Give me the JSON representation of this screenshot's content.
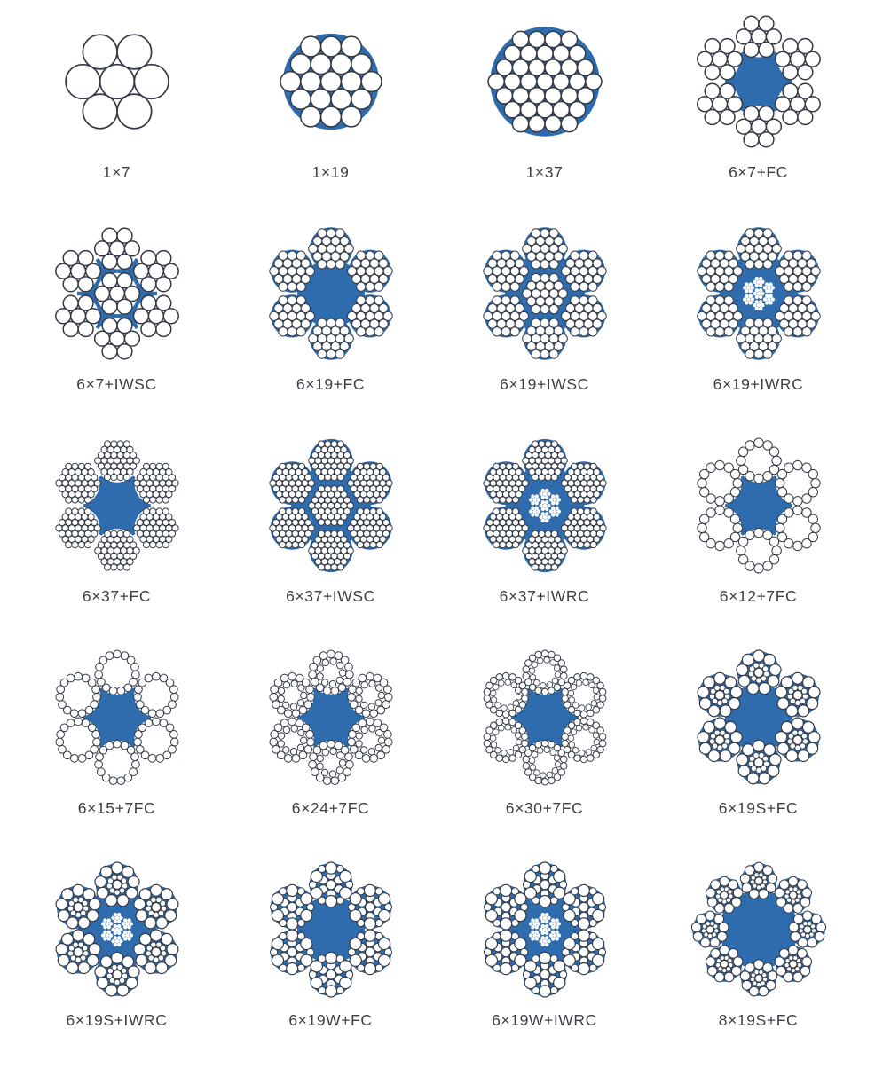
{
  "page": {
    "background": "#ffffff"
  },
  "colors": {
    "core_blue": "#2e6cae",
    "wire_fill": "#ffffff",
    "wire_stroke": "#333a46",
    "label_color": "#3c4045"
  },
  "items": [
    {
      "label": "1×7",
      "kind": "strand",
      "strand": "7",
      "strand_bg": "none"
    },
    {
      "label": "1×19",
      "kind": "strand",
      "strand": "19",
      "strand_bg": "blue"
    },
    {
      "label": "1×37",
      "kind": "strand",
      "strand": "37",
      "strand_bg": "blue"
    },
    {
      "label": "6×7+FC",
      "kind": "rope",
      "strands": 6,
      "strand": "7",
      "strand_bg": "white",
      "core": "fc"
    },
    {
      "label": "6×7+IWSC",
      "kind": "rope",
      "strands": 6,
      "strand": "7",
      "strand_bg": "white",
      "core": "iwsc"
    },
    {
      "label": "6×19+FC",
      "kind": "rope",
      "strands": 6,
      "strand": "19",
      "strand_bg": "blue",
      "core": "fc"
    },
    {
      "label": "6×19+IWSC",
      "kind": "rope",
      "strands": 6,
      "strand": "19",
      "strand_bg": "blue",
      "core": "iwsc"
    },
    {
      "label": "6×19+IWRC",
      "kind": "rope",
      "strands": 6,
      "strand": "19",
      "strand_bg": "blue",
      "core": "iwrc"
    },
    {
      "label": "6×37+FC",
      "kind": "rope",
      "strands": 6,
      "strand": "37",
      "strand_bg": "white",
      "core": "fc"
    },
    {
      "label": "6×37+IWSC",
      "kind": "rope",
      "strands": 6,
      "strand": "37",
      "strand_bg": "blue",
      "core": "iwsc"
    },
    {
      "label": "6×37+IWRC",
      "kind": "rope",
      "strands": 6,
      "strand": "37",
      "strand_bg": "blue",
      "core": "iwrc"
    },
    {
      "label": "6×12+7FC",
      "kind": "rope",
      "strands": 6,
      "strand": "ring12",
      "strand_bg": "white",
      "core": "fc"
    },
    {
      "label": "6×15+7FC",
      "kind": "rope",
      "strands": 6,
      "strand": "ring15",
      "strand_bg": "white",
      "core": "fc"
    },
    {
      "label": "6×24+7FC",
      "kind": "rope",
      "strands": 6,
      "strand": "ring24",
      "strand_bg": "white",
      "core": "fc"
    },
    {
      "label": "6×30+7FC",
      "kind": "rope",
      "strands": 6,
      "strand": "ring30",
      "strand_bg": "white",
      "core": "fc"
    },
    {
      "label": "6×19S+FC",
      "kind": "rope",
      "strands": 6,
      "strand": "seale19",
      "strand_bg": "blue",
      "core": "fc"
    },
    {
      "label": "6×19S+IWRC",
      "kind": "rope",
      "strands": 6,
      "strand": "seale19",
      "strand_bg": "blue",
      "core": "iwrc"
    },
    {
      "label": "6×19W+FC",
      "kind": "rope",
      "strands": 6,
      "strand": "warrington19",
      "strand_bg": "blue",
      "core": "fc"
    },
    {
      "label": "6×19W+IWRC",
      "kind": "rope",
      "strands": 6,
      "strand": "warrington19",
      "strand_bg": "blue",
      "core": "iwrc"
    },
    {
      "label": "8×19S+FC",
      "kind": "rope",
      "strands": 8,
      "strand": "seale19",
      "strand_bg": "blue",
      "core": "fc"
    }
  ]
}
